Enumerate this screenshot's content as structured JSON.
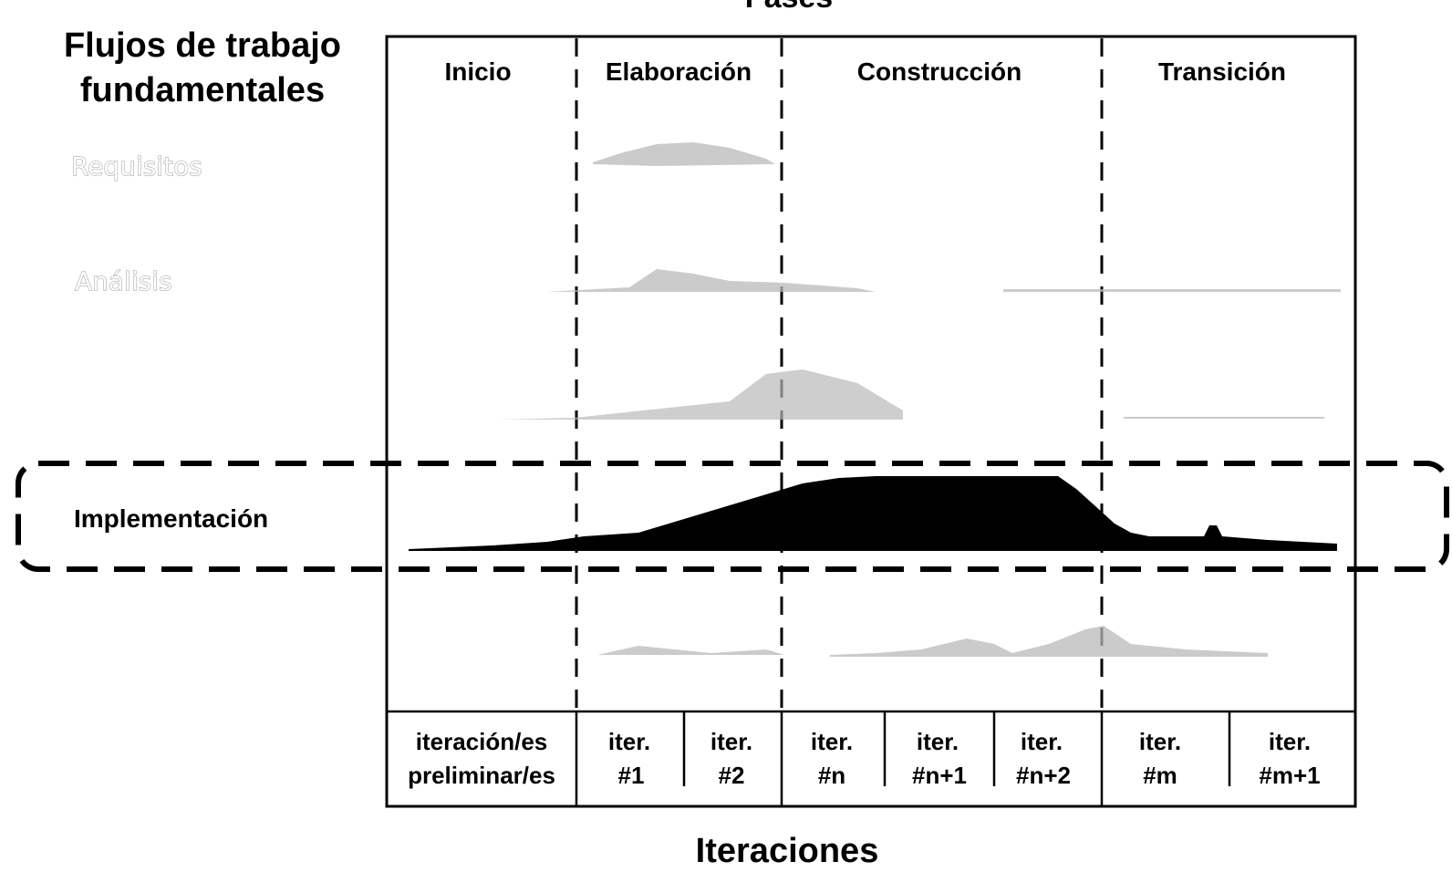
{
  "phases_label": "Fases",
  "workflows_title": [
    "Flujos de trabajo",
    "fundamentales"
  ],
  "phases": [
    "Inicio",
    "Elaboración",
    "Construcción",
    "Transición"
  ],
  "workflows": [
    "Requisitos",
    "Análisis",
    "Implementación"
  ],
  "highlighted_workflow": "Implementación",
  "iterations": [
    [
      "iteración/es",
      "preliminar/es"
    ],
    [
      "iter.",
      "#1"
    ],
    [
      "iter.",
      "#2"
    ],
    [
      "iter.",
      "#n"
    ],
    [
      "iter.",
      "#n+1"
    ],
    [
      "iter.",
      "#n+2"
    ],
    [
      "iter.",
      "#m"
    ],
    [
      "iter.",
      "#m+1"
    ]
  ],
  "iterations_label": "Iteraciones",
  "colors": {
    "ink": "#000000",
    "faint": "#9a9a9a"
  }
}
